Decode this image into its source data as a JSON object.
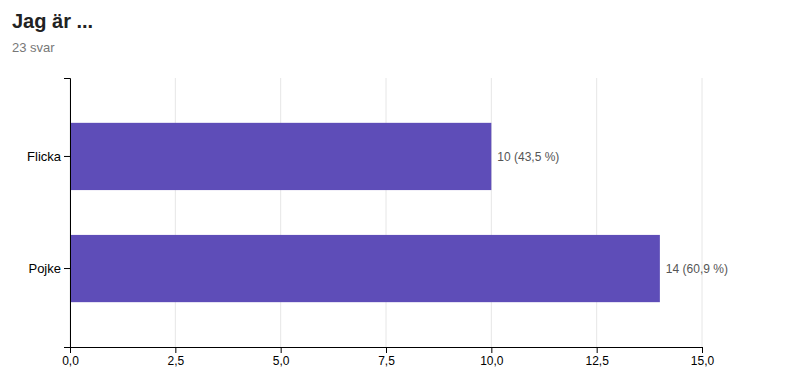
{
  "chart_data": {
    "type": "bar",
    "orientation": "horizontal",
    "title": "Jag är ...",
    "subtitle": "23 svar",
    "categories": [
      "Pojke",
      "Flicka"
    ],
    "values": [
      14,
      10
    ],
    "value_labels": [
      "14 (60,9 %)",
      "10 (43,5 %)"
    ],
    "data_labels": true,
    "color": "#5e4db8",
    "xlim": [
      0,
      15.0
    ],
    "xticks": [
      {
        "value": 0.0,
        "label": "0,0"
      },
      {
        "value": 2.5,
        "label": "2,5"
      },
      {
        "value": 5.0,
        "label": "5,0"
      },
      {
        "value": 7.5,
        "label": "7,5"
      },
      {
        "value": 10.0,
        "label": "10,0"
      },
      {
        "value": 12.5,
        "label": "12,5"
      },
      {
        "value": 15.0,
        "label": "15,0"
      }
    ],
    "grid": true
  }
}
